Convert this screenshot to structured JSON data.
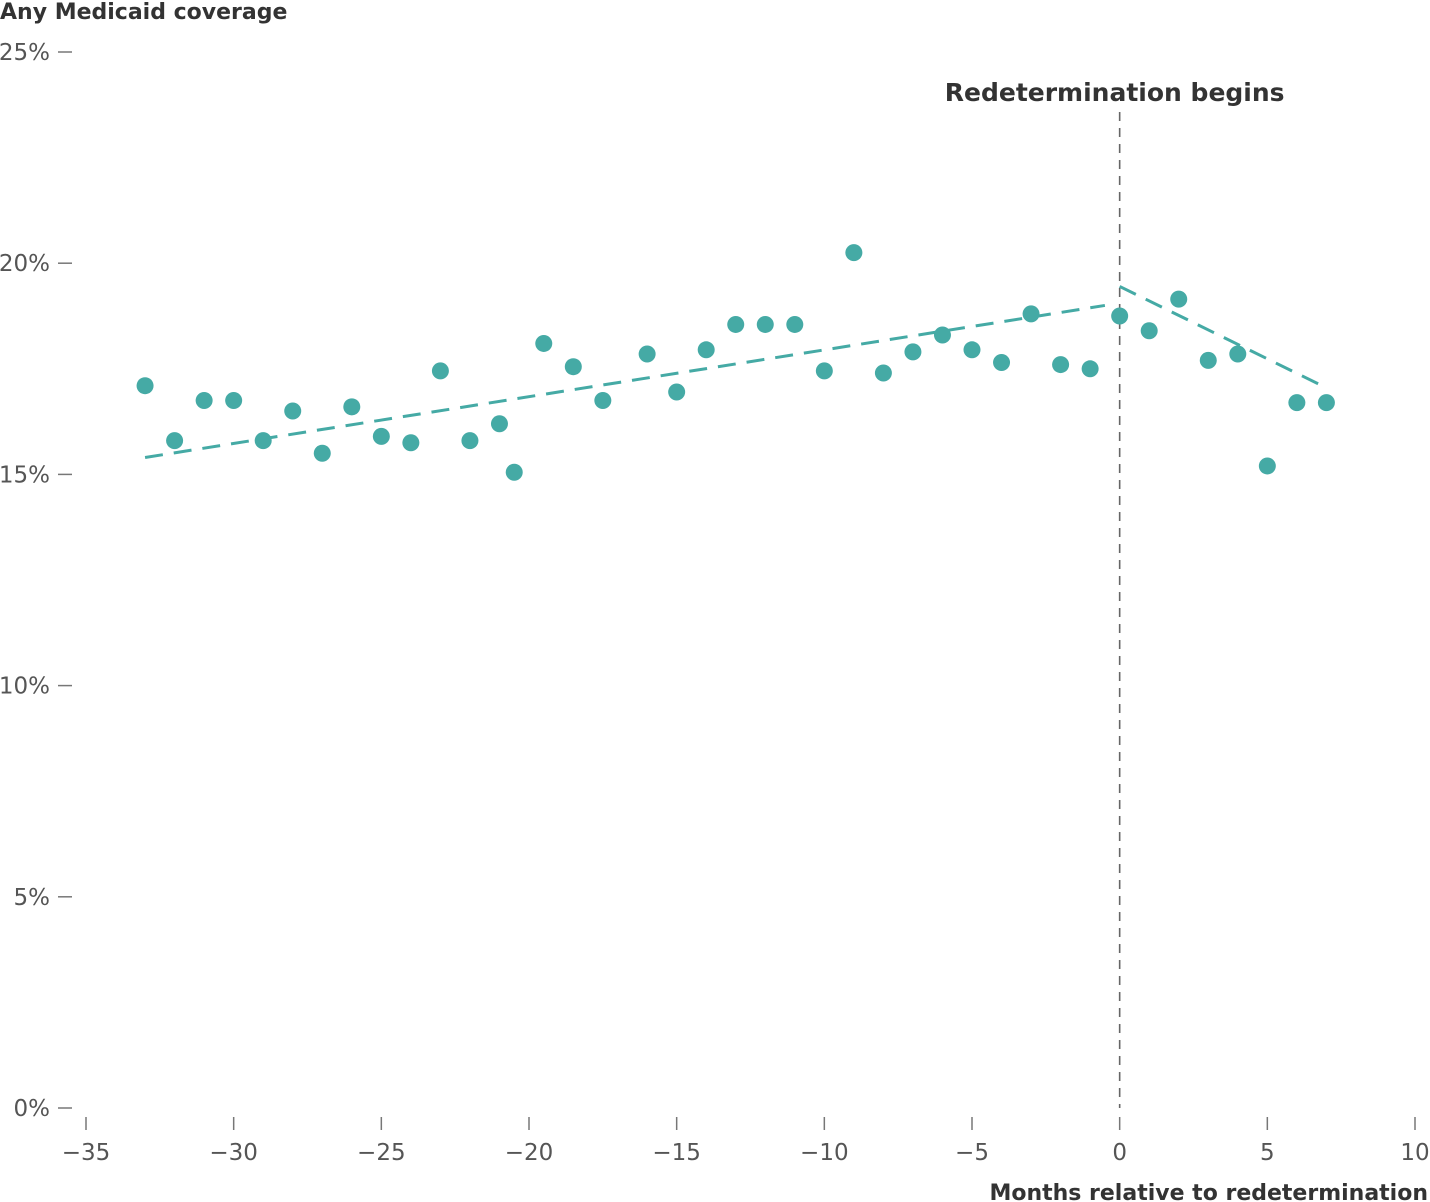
{
  "chart_data": {
    "type": "scatter",
    "title": "",
    "xlabel": "Months relative to redetermination",
    "ylabel": "Any Medicaid coverage",
    "xlim": [
      -35,
      10
    ],
    "ylim": [
      0,
      25
    ],
    "xticks": [
      -35,
      -30,
      -25,
      -20,
      -15,
      -10,
      -5,
      0,
      5,
      10
    ],
    "xtick_labels": [
      "−35",
      "−30",
      "−25",
      "−20",
      "−15",
      "−10",
      "−5",
      "0",
      "5",
      "10"
    ],
    "yticks": [
      0,
      5,
      10,
      15,
      20,
      25
    ],
    "ytick_labels": [
      "0%",
      "5%",
      "10%",
      "15%",
      "20%",
      "25%"
    ],
    "grid": false,
    "legend": "none",
    "color": "#45aaa5",
    "annotation": {
      "label": "Redetermination begins",
      "x": 0
    },
    "points": [
      {
        "x": -33,
        "y": 17.1
      },
      {
        "x": -32,
        "y": 15.8
      },
      {
        "x": -31,
        "y": 16.75
      },
      {
        "x": -30,
        "y": 16.75
      },
      {
        "x": -29,
        "y": 15.8
      },
      {
        "x": -28,
        "y": 16.5
      },
      {
        "x": -27,
        "y": 15.5
      },
      {
        "x": -26,
        "y": 16.6
      },
      {
        "x": -25,
        "y": 15.9
      },
      {
        "x": -24,
        "y": 15.75
      },
      {
        "x": -23,
        "y": 17.45
      },
      {
        "x": -22,
        "y": 15.8
      },
      {
        "x": -21,
        "y": 16.2
      },
      {
        "x": -20.5,
        "y": 15.05
      },
      {
        "x": -19.5,
        "y": 18.1
      },
      {
        "x": -18.5,
        "y": 17.55
      },
      {
        "x": -17.5,
        "y": 16.75
      },
      {
        "x": -16,
        "y": 17.85
      },
      {
        "x": -15,
        "y": 16.95
      },
      {
        "x": -14,
        "y": 17.95
      },
      {
        "x": -13,
        "y": 18.55
      },
      {
        "x": -12,
        "y": 18.55
      },
      {
        "x": -11,
        "y": 18.55
      },
      {
        "x": -10,
        "y": 17.45
      },
      {
        "x": -9,
        "y": 20.25
      },
      {
        "x": -8,
        "y": 17.4
      },
      {
        "x": -7,
        "y": 17.9
      },
      {
        "x": -6,
        "y": 18.3
      },
      {
        "x": -5,
        "y": 17.95
      },
      {
        "x": -4,
        "y": 17.65
      },
      {
        "x": -3,
        "y": 18.8
      },
      {
        "x": -2,
        "y": 17.6
      },
      {
        "x": -1,
        "y": 17.5
      },
      {
        "x": 0,
        "y": 18.75
      },
      {
        "x": 1,
        "y": 18.4
      },
      {
        "x": 2,
        "y": 19.15
      },
      {
        "x": 3,
        "y": 17.7
      },
      {
        "x": 4,
        "y": 17.85
      },
      {
        "x": 5,
        "y": 15.2
      },
      {
        "x": 6,
        "y": 16.7
      },
      {
        "x": 7,
        "y": 16.7
      }
    ],
    "trend_lines": [
      {
        "segment": "pre",
        "x": [
          -33,
          -0.5
        ],
        "y": [
          15.4,
          19.0
        ]
      },
      {
        "segment": "post",
        "x": [
          0,
          7
        ],
        "y": [
          19.45,
          17.05
        ]
      }
    ]
  }
}
